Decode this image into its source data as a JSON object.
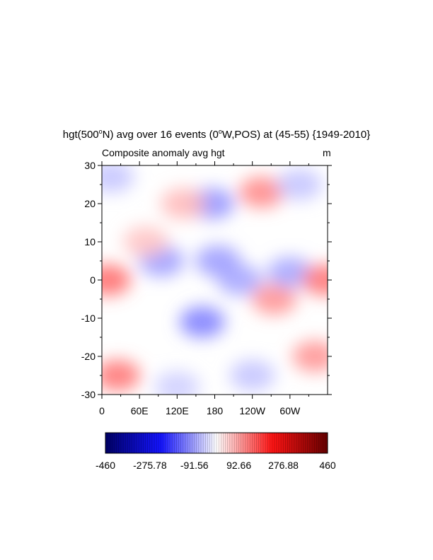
{
  "title": {
    "prefix": "hgt(500",
    "sup": "o",
    "mid": "N) avg over 16 events (0",
    "sup2": "o",
    "suffix": "W,POS) at (45-55) {1949-2010}"
  },
  "subtitle_left": "Composite anomaly avg hgt",
  "units": "m",
  "chart_data": {
    "type": "heatmap",
    "title": "hgt(500°N) avg over 16 events (0°W,POS) at (45-55) {1949-2010}",
    "subtitle": "Composite anomaly avg hgt",
    "units": "m",
    "x_tick_labels": [
      "0",
      "60E",
      "120E",
      "180",
      "120W",
      "60W"
    ],
    "x_tick_positions_deg": [
      0,
      60,
      120,
      180,
      240,
      300
    ],
    "xlim_deg": [
      0,
      360
    ],
    "y_tick_labels": [
      "30",
      "20",
      "10",
      "0",
      "-10",
      "-20",
      "-30"
    ],
    "y_tick_values": [
      30,
      20,
      10,
      0,
      -10,
      -20,
      -30
    ],
    "ylim": [
      -30,
      30
    ],
    "colorbar": {
      "min": -460,
      "max": 460,
      "labels": [
        "-460",
        "-275.78",
        "-91.56",
        "92.66",
        "276.88",
        "460"
      ],
      "label_values": [
        -460,
        -275.78,
        -91.56,
        92.66,
        276.88,
        460
      ],
      "colors": [
        "#000066",
        "#1414ff",
        "#ffffff",
        "#ff1414",
        "#660000"
      ]
    },
    "anomaly_features": [
      {
        "lon": 10,
        "lat": 0,
        "value": 150
      },
      {
        "lon": 25,
        "lat": -25,
        "value": 140
      },
      {
        "lon": 15,
        "lat": 27,
        "value": -60
      },
      {
        "lon": 95,
        "lat": 5,
        "value": -100
      },
      {
        "lon": 70,
        "lat": 10,
        "value": 60
      },
      {
        "lon": 160,
        "lat": -11,
        "value": -130
      },
      {
        "lon": 175,
        "lat": 20,
        "value": -110
      },
      {
        "lon": 185,
        "lat": 5,
        "value": -100
      },
      {
        "lon": 220,
        "lat": 0,
        "value": -90
      },
      {
        "lon": 130,
        "lat": 20,
        "value": 70
      },
      {
        "lon": 255,
        "lat": 23,
        "value": 120
      },
      {
        "lon": 275,
        "lat": -5,
        "value": 110
      },
      {
        "lon": 300,
        "lat": 2,
        "value": -90
      },
      {
        "lon": 315,
        "lat": 25,
        "value": -60
      },
      {
        "lon": 340,
        "lat": -20,
        "value": 110
      },
      {
        "lon": 355,
        "lat": 0,
        "value": 140
      },
      {
        "lon": 240,
        "lat": -25,
        "value": -60
      },
      {
        "lon": 120,
        "lat": -28,
        "value": -50
      }
    ]
  }
}
